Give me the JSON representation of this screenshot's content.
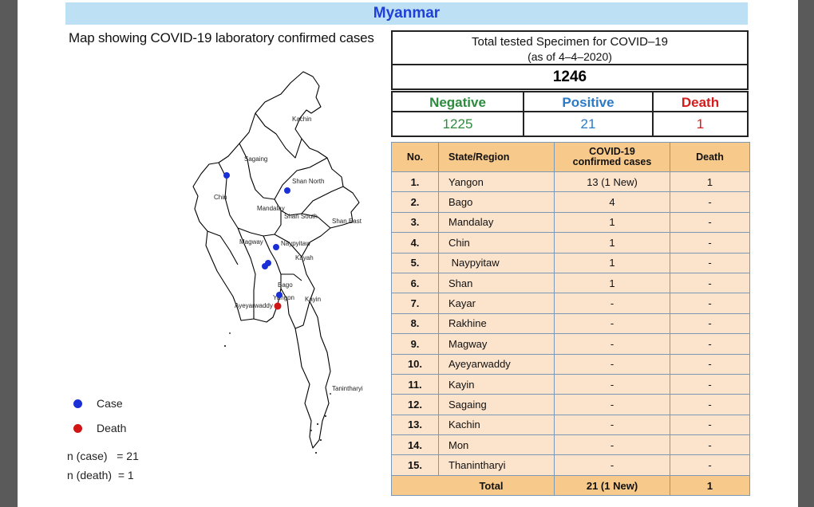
{
  "header": {
    "title": "Myanmar"
  },
  "map": {
    "title": "Map showing COVID-19 laboratory confirmed cases",
    "region_labels": [
      "Kachin",
      "Sagaing",
      "Shan North",
      "Chin",
      "Mandalay",
      "Shan South",
      "Shan East",
      "Magway",
      "Naypyitaw",
      "Kayah",
      "Bago",
      "Yangon",
      "Ayeyarwaddy",
      "Kayin",
      "Tanintharyi"
    ],
    "legend": [
      {
        "label": "Case",
        "color": "#1a2fd6"
      },
      {
        "label": "Death",
        "color": "#d11515"
      }
    ],
    "n_case": "n (case)   = 21",
    "n_death": "n (death)  = 1"
  },
  "summary": {
    "title_line1": "Total tested Specimen for COVID–19",
    "title_line2": "(as of 4–4–2020)",
    "total": "1246",
    "labels": {
      "negative": "Negative",
      "positive": "Positive",
      "death": "Death"
    },
    "values": {
      "negative": "1225",
      "positive": "21",
      "death": "1"
    },
    "colors": {
      "negative": "#2e8b3e",
      "positive": "#2a7ac8",
      "death": "#d41c1c"
    }
  },
  "table": {
    "headers": {
      "no": "No.",
      "state": "State/Region",
      "cases": "COVID-19\nconfirmed cases",
      "death": "Death"
    },
    "rows": [
      {
        "no": "1.",
        "state": "Yangon",
        "cases": "13 (1 New)",
        "death": "1"
      },
      {
        "no": "2.",
        "state": "Bago",
        "cases": "4",
        "death": "-"
      },
      {
        "no": "3.",
        "state": "Mandalay",
        "cases": "1",
        "death": "-"
      },
      {
        "no": "4.",
        "state": "Chin",
        "cases": "1",
        "death": "-"
      },
      {
        "no": "5.",
        "state": " Naypyitaw",
        "cases": "1",
        "death": "-"
      },
      {
        "no": "6.",
        "state": "Shan",
        "cases": "1",
        "death": "-"
      },
      {
        "no": "7.",
        "state": "Kayar",
        "cases": "-",
        "death": "-"
      },
      {
        "no": "8.",
        "state": "Rakhine",
        "cases": "-",
        "death": "-"
      },
      {
        "no": "9.",
        "state": "Magway",
        "cases": "-",
        "death": "-"
      },
      {
        "no": "10.",
        "state": "Ayeyarwaddy",
        "cases": "-",
        "death": "-"
      },
      {
        "no": "11.",
        "state": "Kayin",
        "cases": "-",
        "death": "-"
      },
      {
        "no": "12.",
        "state": "Sagaing",
        "cases": "-",
        "death": "-"
      },
      {
        "no": "13.",
        "state": "Kachin",
        "cases": "-",
        "death": "-"
      },
      {
        "no": "14.",
        "state": "Mon",
        "cases": "-",
        "death": "-"
      },
      {
        "no": "15.",
        "state": "Thanintharyi",
        "cases": "-",
        "death": "-"
      }
    ],
    "total": {
      "label": "Total",
      "cases": "21 (1 New)",
      "death": "1"
    }
  }
}
